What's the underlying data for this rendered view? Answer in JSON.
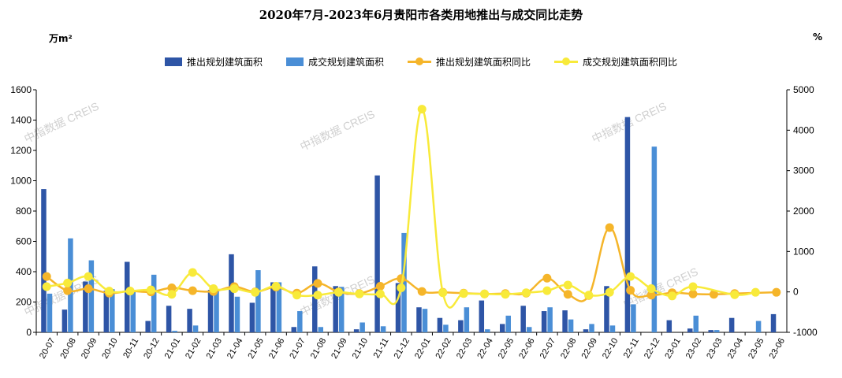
{
  "chart_data": {
    "type": "bar+line",
    "title": "2020年7月-2023年6月贵阳市各类用地推出与成交同比走势",
    "y_left_unit": "万m²",
    "y_right_unit": "%",
    "y_left_lim": [
      0,
      1600
    ],
    "y_right_lim": [
      -1000,
      5000
    ],
    "y_left_ticks": [
      0,
      200,
      400,
      600,
      800,
      1000,
      1200,
      1400,
      1600
    ],
    "y_right_ticks": [
      -1000,
      0,
      1000,
      2000,
      3000,
      4000,
      5000
    ],
    "categories": [
      "20-07",
      "20-08",
      "20-09",
      "20-10",
      "20-11",
      "20-12",
      "21-01",
      "21-02",
      "21-03",
      "21-04",
      "21-05",
      "21-06",
      "21-07",
      "21-08",
      "21-09",
      "21-10",
      "21-11",
      "21-12",
      "22-01",
      "22-02",
      "22-03",
      "22-04",
      "22-05",
      "22-06",
      "22-07",
      "22-08",
      "22-09",
      "22-10",
      "22-11",
      "22-12",
      "23-01",
      "23-02",
      "23-03",
      "23-04",
      "23-05",
      "23-06"
    ],
    "legend_position": "top",
    "series": [
      {
        "name": "推出规划建筑面积",
        "type": "bar",
        "axis": "left",
        "color": "#2e55a6",
        "values": [
          945,
          150,
          335,
          275,
          465,
          75,
          175,
          155,
          280,
          515,
          195,
          330,
          35,
          435,
          305,
          20,
          1035,
          325,
          165,
          95,
          80,
          210,
          55,
          175,
          140,
          145,
          20,
          305,
          1420,
          0,
          80,
          25,
          15,
          95,
          0,
          120
        ]
      },
      {
        "name": "成交规划建筑面积",
        "type": "bar",
        "axis": "left",
        "color": "#4a8ed6",
        "values": [
          255,
          620,
          475,
          285,
          275,
          380,
          10,
          45,
          280,
          235,
          410,
          330,
          140,
          35,
          300,
          65,
          40,
          655,
          155,
          50,
          165,
          20,
          110,
          35,
          165,
          85,
          55,
          45,
          185,
          1225,
          0,
          110,
          15,
          0,
          75,
          0
        ]
      },
      {
        "name": "推出规划建筑面积同比",
        "type": "line",
        "axis": "right",
        "color": "#f5b52a",
        "values": [
          380,
          30,
          80,
          -30,
          20,
          0,
          100,
          30,
          10,
          130,
          0,
          120,
          -30,
          210,
          0,
          -40,
          140,
          330,
          10,
          -10,
          -30,
          -50,
          -40,
          -30,
          340,
          -60,
          -90,
          1590,
          40,
          -80,
          -20,
          -50,
          -60,
          -40,
          null,
          -10
        ]
      },
      {
        "name": "成交规划建筑面积同比",
        "type": "line",
        "axis": "right",
        "color": "#f8ea3a",
        "values": [
          130,
          220,
          380,
          20,
          20,
          50,
          -60,
          480,
          80,
          80,
          -10,
          140,
          -80,
          -80,
          -10,
          -50,
          -50,
          100,
          4520,
          -20,
          -40,
          -50,
          -60,
          -20,
          30,
          170,
          -80,
          -10,
          380,
          80,
          -100,
          130,
          null,
          -70,
          -10,
          null
        ]
      }
    ]
  },
  "watermark": "中指数据 CREIS"
}
